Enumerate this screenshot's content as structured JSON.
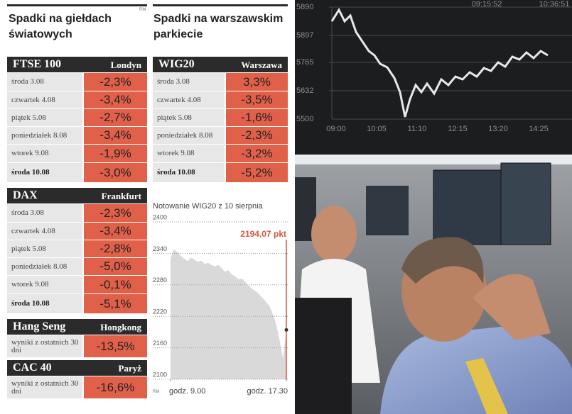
{
  "left_title": "Spadki na giełdach światowych",
  "right_title": "Spadki na warszawskim parkiecie",
  "credit": "RM",
  "markets": [
    {
      "name": "FTSE 100",
      "city": "Londyn",
      "rows": [
        {
          "day": "środa 3.08",
          "change": "-2,3%"
        },
        {
          "day": "czwartek 4.08",
          "change": "-3,4%"
        },
        {
          "day": "piątek 5.08",
          "change": "-2,7%"
        },
        {
          "day": "poniedziałek 8.08",
          "change": "-3,4%"
        },
        {
          "day": "wtorek 9.08",
          "change": "-1,9%"
        },
        {
          "day": "środa 10.08",
          "change": "-3,0%"
        }
      ]
    },
    {
      "name": "DAX",
      "city": "Frankfurt",
      "rows": [
        {
          "day": "środa 3.08",
          "change": "-2,3%"
        },
        {
          "day": "czwartek 4.08",
          "change": "-3,4%"
        },
        {
          "day": "piątek 5.08",
          "change": "-2,8%"
        },
        {
          "day": "poniedziałek 8.08",
          "change": "-5,0%"
        },
        {
          "day": "wtorek 9.08",
          "change": "-0,1%"
        },
        {
          "day": "środa 10.08",
          "change": "-5,1%"
        }
      ]
    },
    {
      "name": "Hang Seng",
      "city": "Hongkong",
      "rows": [
        {
          "day": "wyniki z ostatnich 30 dni",
          "change": "-13,5%"
        }
      ]
    },
    {
      "name": "CAC 40",
      "city": "Paryż",
      "rows": [
        {
          "day": "wyniki z ostatnich 30 dni",
          "change": "-16,6%"
        }
      ]
    }
  ],
  "wig20": {
    "name": "WIG20",
    "city": "Warszawa",
    "rows": [
      {
        "day": "środa 3.08",
        "change": "3,3%"
      },
      {
        "day": "czwartek 4.08",
        "change": "-3,5%"
      },
      {
        "day": "piątek 5.08",
        "change": "-1,6%"
      },
      {
        "day": "poniedziałek 8.08",
        "change": "-2,3%"
      },
      {
        "day": "wtorek 9.08",
        "change": "-3,2%"
      },
      {
        "day": "środa 10.08",
        "change": "-5,2%"
      }
    ]
  },
  "chart_data": {
    "type": "area",
    "title": "Notowanie WIG20 z 10 sierpnia",
    "x": [
      9,
      9.25,
      9.5,
      9.75,
      10,
      10.25,
      10.5,
      10.75,
      11,
      11.25,
      11.5,
      11.75,
      12,
      12.25,
      12.5,
      12.75,
      13,
      13.25,
      13.5,
      13.75,
      14,
      14.25,
      14.5,
      14.75,
      15,
      15.25,
      15.5,
      15.75,
      16,
      16.25,
      16.5,
      16.75,
      17,
      17.25,
      17.5
    ],
    "values": [
      2330,
      2348,
      2342,
      2335,
      2330,
      2325,
      2332,
      2328,
      2324,
      2326,
      2320,
      2322,
      2318,
      2315,
      2318,
      2312,
      2305,
      2308,
      2300,
      2296,
      2290,
      2292,
      2285,
      2278,
      2272,
      2268,
      2262,
      2255,
      2248,
      2240,
      2225,
      2205,
      2175,
      2140,
      2194.07
    ],
    "color": "#d9d9d9",
    "xlim": [
      9,
      17.5
    ],
    "xticks": [
      {
        "value": 9,
        "label": "godz. 9.00"
      },
      {
        "value": 17.5,
        "label": "godz. 17.30"
      }
    ],
    "ylim": [
      2100,
      2400
    ],
    "yticks": [
      2100,
      2160,
      2220,
      2280,
      2340,
      2400
    ],
    "grid": true,
    "annotation": "2194,07 pkt",
    "annotation_color": "#d9553f"
  },
  "photo": {
    "screen_yticks": [
      "5890",
      "5897",
      "5765",
      "5632",
      "5500"
    ],
    "screen_xticks": [
      "09:00",
      "10:05",
      "11:10",
      "12:15",
      "13:20",
      "14:25"
    ],
    "screen_times": [
      "09:15:52",
      "10:36:51"
    ]
  }
}
